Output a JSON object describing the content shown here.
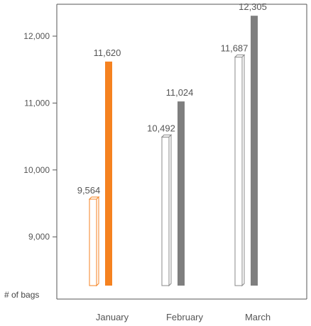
{
  "chart_data": {
    "type": "bar",
    "ylabel": "# of bags",
    "categories": [
      "January",
      "February",
      "March"
    ],
    "ylim": [
      8300,
      12700
    ],
    "yticks": [
      9000,
      10000,
      11000,
      12000
    ],
    "ytick_labels": [
      "9,000",
      "10,000",
      "11,000",
      "12,000"
    ],
    "grid": false,
    "series": [
      {
        "values": [
          9564,
          10492,
          11687
        ],
        "labels": [
          "9,564",
          "10,492",
          "11,687"
        ],
        "style": "outline-3d",
        "colors": [
          "#f58220",
          "#888888",
          "#888888"
        ]
      },
      {
        "values": [
          11620,
          11024,
          12305
        ],
        "labels": [
          "11,620",
          "11,024",
          "12,305"
        ],
        "style": "solid",
        "colors": [
          "#f58220",
          "#7f7f7f",
          "#7f7f7f"
        ]
      }
    ]
  }
}
